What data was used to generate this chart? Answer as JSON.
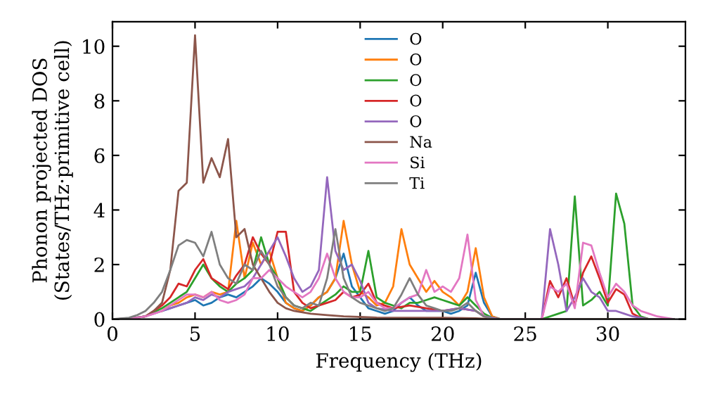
{
  "chart_data": {
    "type": "line",
    "xlabel": "Frequency (THz)",
    "ylabel": "Phonon projected DOS\n(States/THz·primitive cell)",
    "xlim": [
      0,
      34.7
    ],
    "ylim": [
      0,
      10.9
    ],
    "xticks": [
      0,
      5,
      10,
      15,
      20,
      25,
      30
    ],
    "yticks": [
      0,
      2,
      4,
      6,
      8,
      10
    ],
    "legend": "top",
    "series": [
      {
        "name": "O",
        "color": "#1f77b4",
        "x": [
          3,
          3.5,
          4,
          4.5,
          5,
          5.5,
          6,
          6.5,
          7,
          7.5,
          8,
          8.5,
          9,
          9.5,
          10,
          10.5,
          11,
          11.5,
          12,
          12.5,
          13,
          13.5,
          14,
          14.5,
          15,
          15.5,
          16,
          16.5,
          17,
          17.5,
          18,
          18.5,
          19,
          19.5,
          20,
          20.5,
          21,
          21.5,
          22,
          22.5,
          23,
          23.5,
          34
        ],
        "values": [
          0.3,
          0.4,
          0.5,
          0.6,
          0.7,
          0.5,
          0.6,
          0.8,
          0.9,
          0.8,
          1.0,
          1.2,
          1.5,
          1.3,
          1.0,
          0.6,
          0.4,
          0.3,
          0.5,
          0.8,
          1.0,
          1.5,
          2.4,
          1.2,
          0.8,
          0.4,
          0.3,
          0.2,
          0.3,
          0.6,
          0.8,
          0.5,
          0.3,
          0.3,
          0.3,
          0.2,
          0.3,
          0.5,
          1.7,
          0.6,
          0.1,
          0,
          0
        ]
      },
      {
        "name": "O",
        "color": "#ff7f0e",
        "x": [
          3,
          3.5,
          4,
          4.5,
          5,
          5.5,
          6,
          6.5,
          7,
          7.5,
          8,
          8.5,
          9,
          9.5,
          10,
          10.5,
          11,
          11.5,
          12,
          12.5,
          13,
          13.5,
          14,
          14.5,
          15,
          15.5,
          16,
          16.5,
          17,
          17.5,
          18,
          18.5,
          19,
          19.5,
          20,
          20.5,
          21,
          21.5,
          22,
          22.5,
          23,
          23.5,
          34
        ],
        "values": [
          0.3,
          0.5,
          0.6,
          0.8,
          0.9,
          0.8,
          1.0,
          0.9,
          1.0,
          3.6,
          1.5,
          2.8,
          2.0,
          2.5,
          1.5,
          0.6,
          0.4,
          0.3,
          0.5,
          0.8,
          1.0,
          1.5,
          3.6,
          2.0,
          1.0,
          0.8,
          0.5,
          0.6,
          1.2,
          3.3,
          2.0,
          1.5,
          1.0,
          1.4,
          1.0,
          0.8,
          0.5,
          1.0,
          2.6,
          0.8,
          0.1,
          0,
          0
        ]
      },
      {
        "name": "O",
        "color": "#2ca02c",
        "x": [
          0,
          1,
          2,
          3,
          3.5,
          4,
          4.5,
          5,
          5.5,
          6,
          6.5,
          7,
          7.5,
          8,
          8.5,
          9,
          9.5,
          10,
          10.5,
          11,
          11.5,
          12,
          12.5,
          13,
          13.5,
          14,
          14.5,
          15,
          15.5,
          16,
          16.5,
          17,
          17.5,
          18,
          18.5,
          19,
          19.5,
          20,
          20.5,
          21,
          21.5,
          22,
          22.5,
          23,
          23.5,
          26,
          26.5,
          27,
          27.5,
          28,
          28.5,
          29,
          29.5,
          30,
          30.5,
          31,
          31.5,
          32,
          32.5,
          34
        ],
        "values": [
          0,
          0.02,
          0.1,
          0.4,
          0.6,
          0.8,
          1.0,
          1.5,
          2.0,
          1.5,
          1.2,
          1.0,
          1.3,
          1.5,
          1.8,
          3.0,
          2.0,
          1.5,
          0.8,
          0.5,
          0.4,
          0.3,
          0.5,
          0.7,
          0.9,
          1.2,
          1.0,
          1.0,
          2.5,
          0.8,
          0.6,
          0.5,
          0.4,
          0.6,
          0.6,
          0.7,
          0.8,
          0.7,
          0.6,
          0.5,
          0.8,
          0.5,
          0.2,
          0.05,
          0,
          0,
          0.1,
          0.2,
          0.3,
          4.5,
          0.5,
          0.7,
          1.0,
          0.5,
          4.6,
          3.5,
          0.5,
          0.1,
          0,
          0
        ]
      },
      {
        "name": "O",
        "color": "#d62728",
        "x": [
          0,
          1,
          2,
          3,
          3.5,
          4,
          4.5,
          5,
          5.5,
          6,
          6.5,
          7,
          7.5,
          8,
          8.5,
          9,
          9.5,
          10,
          10.5,
          11,
          11.5,
          12,
          12.5,
          13,
          13.5,
          14,
          14.5,
          15,
          15.5,
          16,
          17,
          18,
          19,
          20,
          21,
          22,
          22.5,
          23,
          23.5,
          26,
          26.5,
          27,
          27.5,
          28,
          28.5,
          29,
          29.5,
          30,
          30.5,
          31,
          31.5,
          32,
          32.5,
          34
        ],
        "values": [
          0,
          0.02,
          0.1,
          0.5,
          0.8,
          1.3,
          1.2,
          1.8,
          2.2,
          1.5,
          1.3,
          1.1,
          1.6,
          2.0,
          3.0,
          2.4,
          2.0,
          3.2,
          3.2,
          1.0,
          0.6,
          0.4,
          0.5,
          0.6,
          0.7,
          1.0,
          0.8,
          0.9,
          1.3,
          0.6,
          0.4,
          0.5,
          0.4,
          0.3,
          0.4,
          0.3,
          0.1,
          0.02,
          0,
          0,
          1.4,
          0.8,
          1.5,
          0.5,
          1.7,
          2.3,
          1.5,
          0.6,
          1.1,
          0.9,
          0.2,
          0.05,
          0,
          0
        ]
      },
      {
        "name": "O",
        "color": "#9467bd",
        "x": [
          0,
          1,
          2,
          3,
          3.5,
          4,
          4.5,
          5,
          5.5,
          6,
          6.5,
          7,
          7.5,
          8,
          8.5,
          9,
          9.5,
          10,
          10.5,
          11,
          11.5,
          12,
          12.5,
          13,
          13.5,
          14,
          14.5,
          15,
          15.5,
          16,
          17,
          18,
          19,
          20,
          21,
          22,
          22.5,
          23,
          23.5,
          26,
          26.5,
          27,
          27.5,
          28,
          28.5,
          29,
          29.5,
          30,
          30.5,
          31,
          31.5,
          32,
          32.5,
          34
        ],
        "values": [
          0,
          0.02,
          0.1,
          0.3,
          0.4,
          0.5,
          0.6,
          0.8,
          0.7,
          0.9,
          0.8,
          1.0,
          1.1,
          1.2,
          1.5,
          2.0,
          2.5,
          3.0,
          2.3,
          1.5,
          1.0,
          1.2,
          1.8,
          5.2,
          2.5,
          1.8,
          2.0,
          1.4,
          0.6,
          0.4,
          0.3,
          0.3,
          0.3,
          0.3,
          0.4,
          0.3,
          0.1,
          0.05,
          0,
          0,
          3.3,
          2.0,
          0.3,
          0.8,
          1.5,
          1.0,
          0.8,
          0.3,
          0.3,
          0.2,
          0.1,
          0.05,
          0,
          0
        ]
      },
      {
        "name": "Na",
        "color": "#8c564b",
        "x": [
          0,
          0.5,
          1,
          1.5,
          2,
          2.5,
          3,
          3.5,
          4,
          4.5,
          5,
          5.5,
          6,
          6.5,
          7,
          7.5,
          8,
          8.5,
          9,
          9.5,
          10,
          10.5,
          11,
          11.5,
          12,
          13,
          14,
          15,
          16,
          18,
          20,
          22,
          23,
          34
        ],
        "values": [
          0,
          0,
          0.02,
          0.05,
          0.1,
          0.3,
          0.6,
          1.8,
          4.7,
          5.0,
          10.4,
          5.0,
          5.9,
          5.2,
          6.6,
          3.0,
          3.3,
          2.0,
          1.5,
          1.0,
          0.6,
          0.4,
          0.3,
          0.25,
          0.2,
          0.15,
          0.1,
          0.08,
          0.06,
          0.05,
          0.05,
          0.03,
          0,
          0
        ]
      },
      {
        "name": "Si",
        "color": "#e377c2",
        "x": [
          0,
          1,
          1.5,
          2,
          2.5,
          3,
          3.5,
          4,
          4.5,
          5,
          5.5,
          6,
          6.5,
          7,
          7.5,
          8,
          8.5,
          9,
          9.5,
          10,
          10.5,
          11,
          11.5,
          12,
          12.5,
          13,
          13.5,
          14,
          14.5,
          15,
          15.5,
          16,
          16.5,
          17,
          17.5,
          18,
          18.5,
          19,
          19.5,
          20,
          20.5,
          21,
          21.5,
          22,
          22.5,
          23,
          23.5,
          26,
          26.5,
          27,
          27.5,
          28,
          28.5,
          29,
          29.5,
          30,
          30.5,
          31,
          31.5,
          32,
          32.5,
          33,
          33.5,
          34
        ],
        "values": [
          0,
          0.02,
          0.05,
          0.1,
          0.2,
          0.3,
          0.5,
          0.7,
          0.9,
          0.9,
          0.8,
          1.0,
          0.7,
          0.6,
          0.7,
          0.9,
          1.5,
          1.5,
          1.8,
          1.5,
          1.2,
          1.0,
          0.8,
          1.0,
          1.5,
          2.4,
          1.5,
          1.0,
          0.8,
          0.8,
          1.0,
          0.6,
          0.4,
          0.4,
          0.6,
          0.8,
          0.9,
          1.8,
          1.0,
          1.2,
          1.0,
          1.5,
          3.1,
          0.7,
          0.1,
          0.02,
          0,
          0,
          1.2,
          1.0,
          1.3,
          0.4,
          2.8,
          2.7,
          1.7,
          0.8,
          1.3,
          1.0,
          0.5,
          0.3,
          0.2,
          0.1,
          0.05,
          0
        ]
      },
      {
        "name": "Ti",
        "color": "#7f7f7f",
        "x": [
          0,
          1,
          1.5,
          2,
          2.5,
          3,
          3.5,
          4,
          4.5,
          5,
          5.5,
          6,
          6.5,
          7,
          7.5,
          8,
          8.5,
          9,
          9.5,
          10,
          10.5,
          11,
          11.5,
          12,
          12.5,
          13,
          13.5,
          14,
          14.5,
          15,
          15.5,
          16,
          16.5,
          17,
          17.5,
          18,
          18.5,
          19,
          19.5,
          20,
          20.5,
          21,
          21.5,
          22,
          22.5,
          23,
          23.5,
          34
        ],
        "values": [
          0,
          0.05,
          0.15,
          0.3,
          0.6,
          1.0,
          1.8,
          2.7,
          2.9,
          2.8,
          2.3,
          3.2,
          2.0,
          1.5,
          1.3,
          2.0,
          1.8,
          2.5,
          2.0,
          1.2,
          0.8,
          0.5,
          0.4,
          0.6,
          0.5,
          1.5,
          3.3,
          1.5,
          0.8,
          0.6,
          0.5,
          0.4,
          0.3,
          0.4,
          0.9,
          1.5,
          0.9,
          0.5,
          0.4,
          0.3,
          0.3,
          0.4,
          0.6,
          0.3,
          0.1,
          0.02,
          0,
          0
        ]
      }
    ]
  }
}
